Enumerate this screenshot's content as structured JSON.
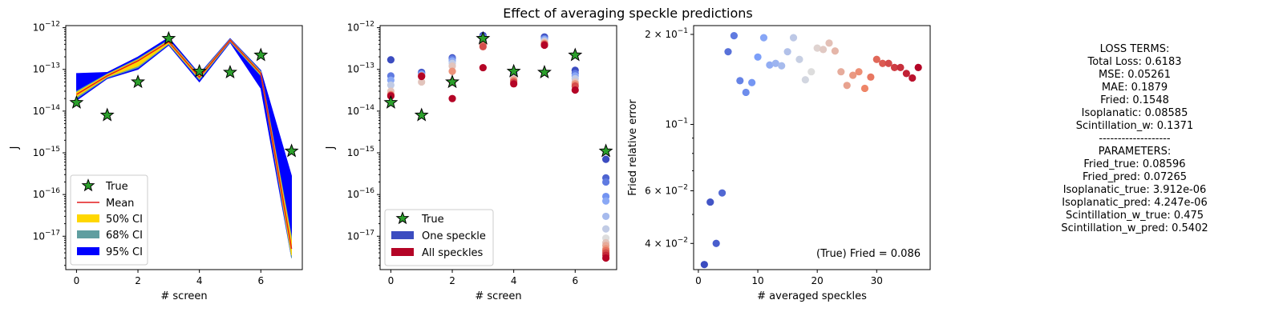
{
  "figure": {
    "title": "Effect of averaging speckle predictions"
  },
  "chart_data": [
    {
      "type": "line",
      "panel": "left",
      "xlabel": "# screen",
      "ylabel": "J",
      "yscale": "log",
      "xlim": [
        -0.35,
        7.35
      ],
      "ylim_exp": [
        -17.8,
        -11.95
      ],
      "xticks": [
        0,
        2,
        4,
        6
      ],
      "yticks_exp": [
        -17,
        -16,
        -15,
        -14,
        -13,
        -12
      ],
      "legend": {
        "position": "lower-left",
        "entries": [
          "True",
          "Mean",
          "50% CI",
          "68% CI",
          "95% CI"
        ]
      },
      "x": [
        0,
        1,
        2,
        3,
        4,
        5,
        6,
        7
      ],
      "true_values": [
        1.6e-14,
        8e-15,
        5e-14,
        5.5e-13,
        9e-14,
        8.5e-14,
        2.2e-13,
        1.1e-15
      ],
      "mean": [
        2.5e-14,
        7e-14,
        1.6e-13,
        4.6e-13,
        6.5e-14,
        5e-13,
        8e-14,
        5e-18
      ],
      "ci50": {
        "low": [
          2.2e-14,
          6.6e-14,
          1.2e-13,
          4.2e-13,
          6e-14,
          4.8e-13,
          7.5e-14,
          3.5e-18
        ],
        "high": [
          2.8e-14,
          7.5e-14,
          1.7e-13,
          4.9e-13,
          7e-14,
          5.2e-13,
          8.5e-14,
          8e-18
        ]
      },
      "ci68": {
        "low": [
          2e-14,
          6.3e-14,
          1.1e-13,
          4e-13,
          5.6e-14,
          4.6e-13,
          7e-14,
          3e-18
        ],
        "high": [
          3e-14,
          7.8e-14,
          1.8e-13,
          5.1e-13,
          7.4e-14,
          5.3e-13,
          9e-14,
          1e-17
        ]
      },
      "ci95": {
        "low": [
          1.8e-14,
          6e-14,
          1e-13,
          3.8e-13,
          5e-14,
          4.4e-13,
          3.5e-14,
          3e-18
        ],
        "high": [
          8e-14,
          8.5e-14,
          2e-13,
          5.8e-13,
          7.8e-14,
          5.5e-13,
          9.5e-14,
          2.8e-16
        ]
      },
      "colors": {
        "true": "#2ca02c",
        "mean": "#e41a1c",
        "ci50": "#ffd700",
        "ci68": "#5f9ea0",
        "ci95": "#0000ff"
      }
    },
    {
      "type": "scatter",
      "panel": "middle",
      "xlabel": "# screen",
      "ylabel": "J",
      "yscale": "log",
      "xlim": [
        -0.35,
        7.35
      ],
      "ylim_exp": [
        -17.8,
        -11.95
      ],
      "xticks": [
        0,
        2,
        4,
        6
      ],
      "yticks_exp": [
        -17,
        -16,
        -15,
        -14,
        -13,
        -12
      ],
      "legend": {
        "position": "lower-left",
        "entries": [
          "True",
          "One speckle",
          "All speckles"
        ]
      },
      "true_values": [
        1.6e-14,
        8e-15,
        5e-14,
        5.5e-13,
        9e-14,
        8.5e-14,
        2.2e-13,
        1.1e-15
      ],
      "speckle_preds": [
        [
          1.7e-13,
          7e-14,
          5.5e-14,
          4.2e-14,
          3e-14,
          2.5e-14,
          2.4e-14,
          2.3e-14
        ],
        [
          8.5e-14,
          8e-14,
          7.5e-14,
          7e-14,
          5e-14,
          7e-14,
          7e-14,
          6.8e-14
        ],
        [
          1.9e-13,
          1.8e-13,
          1.6e-13,
          1.4e-13,
          1.2e-13,
          9e-14,
          5e-14,
          2e-14
        ],
        [
          6.5e-13,
          6e-13,
          5.5e-13,
          5e-13,
          4.5e-13,
          4e-13,
          3.5e-13,
          1.1e-13
        ],
        [
          8e-14,
          7.5e-14,
          7e-14,
          6.5e-14,
          6e-14,
          5.5e-14,
          5e-14,
          4.5e-14
        ],
        [
          6e-13,
          5.5e-13,
          5.2e-13,
          4.8e-13,
          4.5e-13,
          4.2e-13,
          4e-13,
          3.8e-13
        ],
        [
          9.5e-14,
          8e-14,
          7e-14,
          6e-14,
          5e-14,
          4.5e-14,
          4e-14,
          3.2e-14
        ],
        [
          7e-16,
          2.5e-16,
          2e-16,
          9e-17,
          7e-17,
          3e-17,
          1.5e-17,
          9e-18,
          7e-18,
          6e-18,
          5e-18,
          4.5e-18,
          4e-18,
          3.5e-18,
          3e-18
        ]
      ],
      "colors": {
        "true": "#2ca02c",
        "one": "#3b4cc0",
        "all": "#b40426"
      }
    },
    {
      "type": "scatter",
      "panel": "right",
      "xlabel": "# averaged speckles",
      "ylabel": "Fried relative error",
      "yscale": "log",
      "xlim": [
        -0.8,
        39
      ],
      "ylim": [
        0.0327,
        0.214
      ],
      "xticks": [
        0,
        10,
        20,
        30
      ],
      "yticks": [
        {
          "value": 0.04,
          "mant": "4",
          "exp": "−2"
        },
        {
          "value": 0.06,
          "mant": "6",
          "exp": "−2"
        },
        {
          "value": 0.1,
          "mant": "",
          "exp": "−1"
        },
        {
          "value": 0.2,
          "mant": "2",
          "exp": "−1"
        }
      ],
      "annotation": "(True) Fried = 0.086",
      "x": [
        1,
        2,
        3,
        4,
        5,
        6,
        7,
        8,
        9,
        10,
        11,
        12,
        13,
        14,
        15,
        16,
        17,
        18,
        19,
        20,
        21,
        22,
        23,
        24,
        25,
        26,
        27,
        28,
        29,
        30,
        31,
        32,
        33,
        34,
        35,
        36,
        37
      ],
      "y": [
        0.034,
        0.055,
        0.04,
        0.059,
        0.175,
        0.198,
        0.14,
        0.128,
        0.138,
        0.168,
        0.195,
        0.158,
        0.16,
        0.157,
        0.175,
        0.195,
        0.165,
        0.141,
        0.15,
        0.18,
        0.178,
        0.187,
        0.176,
        0.15,
        0.135,
        0.146,
        0.15,
        0.132,
        0.144,
        0.165,
        0.16,
        0.16,
        0.155,
        0.155,
        0.148,
        0.143,
        0.155
      ],
      "colormap": "coolwarm"
    }
  ],
  "text_panel": {
    "lines": [
      "LOSS TERMS:",
      "Total Loss: 0.6183",
      "MSE: 0.05261",
      "MAE: 0.1879",
      "Fried: 0.1548",
      "Isoplanatic: 0.08585",
      "Scintillation_w: 0.1371",
      "-------------------",
      "PARAMETERS:",
      "Fried_true: 0.08596",
      "Fried_pred: 0.07265",
      "Isoplanatic_true: 3.912e-06",
      "Isoplanatic_pred: 4.247e-06",
      "Scintillation_w_true: 0.475",
      "Scintillation_w_pred: 0.5402"
    ]
  }
}
